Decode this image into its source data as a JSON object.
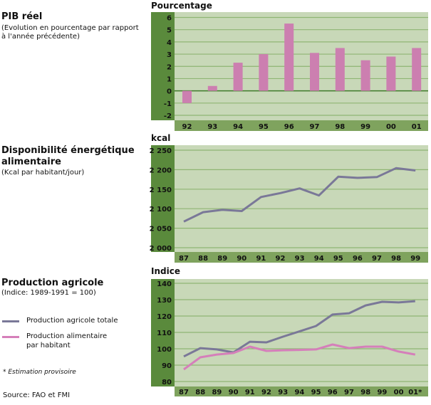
{
  "colors": {
    "axis_band": "#5a8a3c",
    "xlabel_band": "#7fa35e",
    "plot_bg": "#c8d8b8",
    "gridline": "#8fb573",
    "zero_line": "#3f7a2a",
    "bar": "#cc7fb0",
    "line_total": "#7a7898",
    "line_food": "#d57fba"
  },
  "panels": {
    "pib": {
      "title": "PIB réel",
      "subtitle_lines": [
        "(Evolution en pourcentage par rapport",
        "à l'année précédente)"
      ]
    },
    "kcal": {
      "title_lines": [
        "Disponibilité énergétique",
        "alimentaire"
      ],
      "subtitle": "(Kcal par habitant/jour)"
    },
    "prod": {
      "title": "Production agricole",
      "subtitle": "(Indice: 1989-1991 = 100)"
    }
  },
  "legend": [
    {
      "label_lines": [
        "Production agricole totale"
      ],
      "color_key": "line_total"
    },
    {
      "label_lines": [
        "Production alimentaire",
        "par habitant"
      ],
      "color_key": "line_food"
    }
  ],
  "footnote": "* Estimation provisoire",
  "source": "Source: FAO et FMI",
  "chart_data": [
    {
      "type": "bar",
      "title": "PIB réel",
      "ylabel": "Pourcentage",
      "categories": [
        "92",
        "93",
        "94",
        "95",
        "96",
        "97",
        "98",
        "99",
        "00",
        "01"
      ],
      "values": [
        -1.0,
        0.4,
        2.3,
        3.0,
        5.5,
        3.1,
        3.5,
        2.5,
        2.8,
        3.5
      ],
      "ylim": [
        -2,
        6
      ],
      "yticks": [
        6,
        5,
        4,
        3,
        2,
        1,
        0,
        -1,
        -2
      ],
      "ytick_labels": [
        "6",
        "5",
        "4",
        "3",
        "2",
        "1",
        "0",
        "-1",
        "-2"
      ],
      "grid": true
    },
    {
      "type": "line",
      "title": "Disponibilité énergétique alimentaire",
      "ylabel": "kcal",
      "categories": [
        "87",
        "88",
        "89",
        "90",
        "91",
        "92",
        "93",
        "94",
        "95",
        "96",
        "97",
        "98",
        "99"
      ],
      "series": [
        {
          "name": "Kcal par habitant/jour",
          "values": [
            2067,
            2091,
            2097,
            2094,
            2130,
            2140,
            2152,
            2134,
            2182,
            2179,
            2181,
            2204,
            2198
          ]
        }
      ],
      "ylim": [
        2000,
        2250
      ],
      "yticks": [
        2250,
        2200,
        2150,
        2100,
        2050,
        2000
      ],
      "ytick_labels": [
        "2 250",
        "2 200",
        "2 150",
        "2 100",
        "2 050",
        "2 000"
      ],
      "grid": true
    },
    {
      "type": "line",
      "title": "Production agricole",
      "ylabel": "Indice",
      "categories": [
        "87",
        "88",
        "89",
        "90",
        "91",
        "92",
        "93",
        "94",
        "95",
        "96",
        "97",
        "98",
        "99",
        "00",
        "01*"
      ],
      "series": [
        {
          "name": "Production agricole totale",
          "values": [
            95.3,
            100.4,
            99.6,
            97.8,
            104.3,
            103.9,
            107.4,
            110.6,
            113.9,
            120.9,
            121.7,
            126.5,
            128.7,
            128.3,
            129.1
          ]
        },
        {
          "name": "Production alimentaire par habitant",
          "values": [
            87.4,
            94.8,
            96.5,
            97.4,
            101.3,
            98.7,
            99.1,
            99.3,
            99.6,
            102.6,
            100.4,
            101.3,
            101.3,
            98.3,
            96.5
          ]
        }
      ],
      "ylim": [
        80,
        140
      ],
      "yticks": [
        140,
        130,
        120,
        110,
        100,
        90,
        80
      ],
      "ytick_labels": [
        "140",
        "130",
        "120",
        "110",
        "100",
        "90",
        "80"
      ],
      "grid": true,
      "legend": "left"
    }
  ]
}
